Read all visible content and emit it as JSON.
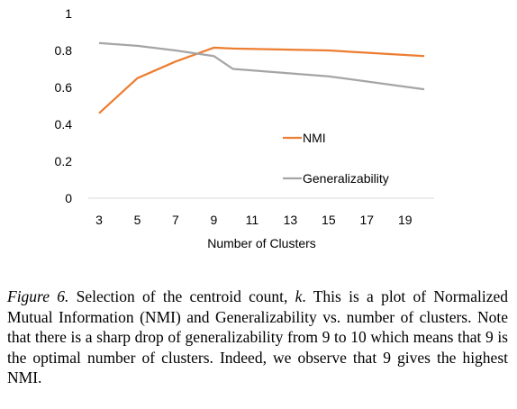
{
  "chart_data": {
    "type": "line",
    "title": "",
    "xlabel": "Number of Clusters",
    "ylabel": "",
    "xlim": [
      2,
      21
    ],
    "ylim": [
      0,
      1
    ],
    "x_ticks": [
      3,
      5,
      7,
      9,
      11,
      13,
      15,
      17,
      19
    ],
    "y_ticks": [
      0,
      0.2,
      0.4,
      0.6,
      0.8,
      1
    ],
    "y_tick_labels": [
      "0",
      "0.2",
      "0.4",
      "0.6",
      "0.8",
      "1"
    ],
    "series": [
      {
        "name": "NMI",
        "color": "#ED7D31",
        "x": [
          3,
          5,
          7,
          9,
          10,
          15,
          20
        ],
        "y": [
          0.46,
          0.65,
          0.74,
          0.815,
          0.81,
          0.8,
          0.77
        ]
      },
      {
        "name": "Generalizability",
        "color": "#A5A5A5",
        "x": [
          3,
          5,
          7,
          9,
          10,
          15,
          20
        ],
        "y": [
          0.84,
          0.825,
          0.8,
          0.77,
          0.7,
          0.66,
          0.59
        ]
      }
    ],
    "grid": false,
    "legend": "inside-right"
  },
  "caption": {
    "label": "Figure 6.",
    "text_before_var": " Selection of the centroid count, ",
    "var": "k",
    "text_after_var": ". This is a plot of Normalized Mutual Information (NMI) and Generalizability vs. number of clusters. Note that there is a sharp drop of generalizability from 9 to 10 which means that 9 is the optimal number of clusters. Indeed, we observe that 9 gives the highest NMI."
  }
}
